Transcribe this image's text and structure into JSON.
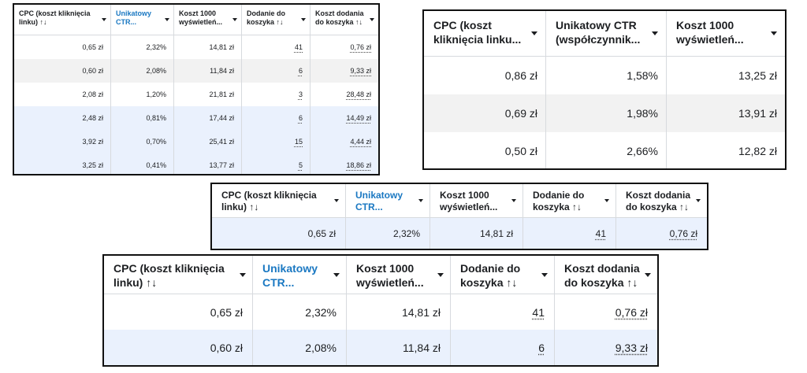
{
  "panels": [
    {
      "headers": [
        {
          "label": "CPC (koszt kliknięcia linku) ↑↓"
        },
        {
          "label": "Unikatowy CTR..."
        },
        {
          "label": "Koszt 1000 wyświetleń..."
        },
        {
          "label": "Dodanie do koszyka ↑↓"
        },
        {
          "label": "Koszt dodania do koszyka ↑↓"
        }
      ],
      "rows": [
        [
          "0,65 zł",
          "2,32%",
          "14,81 zł",
          "41",
          "0,76 zł"
        ],
        [
          "0,60 zł",
          "2,08%",
          "11,84 zł",
          "6",
          "9,33 zł"
        ],
        [
          "2,08 zł",
          "1,20%",
          "21,81 zł",
          "3",
          "28,48 zł"
        ],
        [
          "2,48 zł",
          "0,81%",
          "17,44 zł",
          "6",
          "14,49 zł"
        ],
        [
          "3,92 zł",
          "0,70%",
          "25,41 zł",
          "15",
          "4,44 zł"
        ],
        [
          "3,25 zł",
          "0,41%",
          "13,77 zł",
          "5",
          "18,86 zł"
        ]
      ]
    },
    {
      "headers": [
        {
          "label": "CPC (koszt kliknięcia linku..."
        },
        {
          "label": "Unikatowy CTR (współczynnik..."
        },
        {
          "label": "Koszt 1000 wyświetleń..."
        }
      ],
      "rows": [
        [
          "0,86 zł",
          "1,58%",
          "13,25 zł"
        ],
        [
          "0,69 zł",
          "1,98%",
          "13,91 zł"
        ],
        [
          "0,50 zł",
          "2,66%",
          "12,82 zł"
        ]
      ]
    },
    {
      "headers": [
        {
          "label": "CPC (koszt kliknięcia linku) ↑↓"
        },
        {
          "label": "Unikatowy CTR..."
        },
        {
          "label": "Koszt 1000 wyświetleń..."
        },
        {
          "label": "Dodanie do koszyka ↑↓"
        },
        {
          "label": "Koszt dodania do koszyka ↑↓"
        }
      ],
      "rows": [
        [
          "0,65 zł",
          "2,32%",
          "14,81 zł",
          "41",
          "0,76 zł"
        ]
      ]
    },
    {
      "headers": [
        {
          "label": "CPC (koszt kliknięcia linku) ↑↓"
        },
        {
          "label": "Unikatowy CTR..."
        },
        {
          "label": "Koszt 1000 wyświetleń..."
        },
        {
          "label": "Dodanie do koszyka ↑↓"
        },
        {
          "label": "Koszt dodania do koszyka ↑↓"
        }
      ],
      "rows": [
        [
          "0,65 zł",
          "2,32%",
          "14,81 zł",
          "41",
          "0,76 zł"
        ],
        [
          "0,60 zł",
          "2,08%",
          "11,84 zł",
          "6",
          "9,33 zł"
        ]
      ]
    }
  ],
  "colors": {
    "highlight_header": "#1a78c2",
    "row_gray": "#f2f2f2",
    "row_blue": "#eaf1fd"
  }
}
